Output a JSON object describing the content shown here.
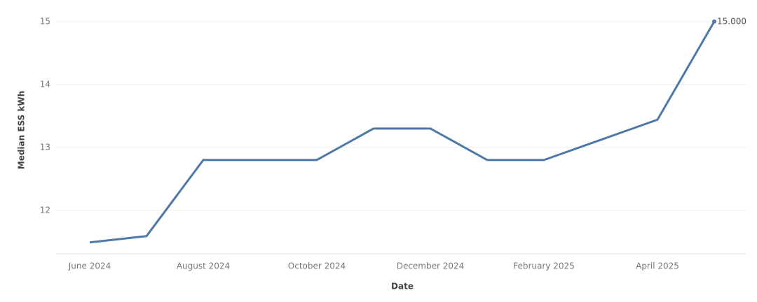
{
  "chart_data": {
    "type": "line",
    "x_label": "Date",
    "y_label": "Median ESS kWh",
    "categories": [
      "June 2024",
      null,
      "August 2024",
      null,
      "October 2024",
      null,
      "December 2024",
      null,
      "February 2025",
      null,
      "April 2025",
      null
    ],
    "series": [
      {
        "name": "Median ESS kWh",
        "color": "#4e79a7",
        "values": [
          11.49,
          11.59,
          12.8,
          12.8,
          12.8,
          13.3,
          13.3,
          12.8,
          12.8,
          13.12,
          13.44,
          15.0
        ],
        "value_labels": [
          null,
          null,
          null,
          null,
          null,
          null,
          null,
          null,
          null,
          null,
          null,
          "15.000"
        ]
      }
    ],
    "ylim": [
      11.31,
      15.12
    ],
    "yticks": [
      12,
      13,
      14,
      15
    ],
    "grid": true
  }
}
